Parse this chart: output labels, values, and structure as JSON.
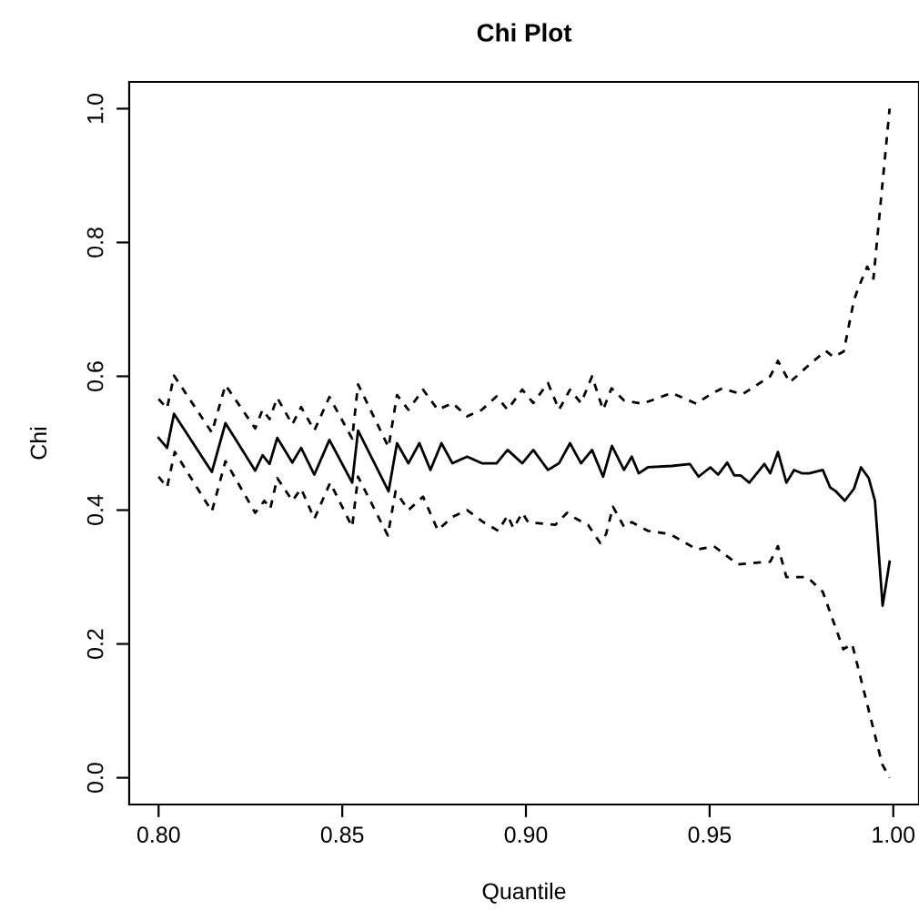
{
  "chart_data": {
    "type": "line",
    "title": "Chi Plot",
    "xlabel": "Quantile",
    "ylabel": "Chi",
    "xlim": [
      0.792,
      1.007
    ],
    "ylim": [
      -0.04,
      1.04
    ],
    "xticks": [
      {
        "value": 0.8,
        "label": "0.80"
      },
      {
        "value": 0.85,
        "label": "0.85"
      },
      {
        "value": 0.9,
        "label": "0.90"
      },
      {
        "value": 0.95,
        "label": "0.95"
      },
      {
        "value": 1.0,
        "label": "1.00"
      }
    ],
    "yticks": [
      {
        "value": 0.0,
        "label": "0.0"
      },
      {
        "value": 0.2,
        "label": "0.2"
      },
      {
        "value": 0.4,
        "label": "0.4"
      },
      {
        "value": 0.6,
        "label": "0.6"
      },
      {
        "value": 0.8,
        "label": "0.8"
      },
      {
        "value": 1.0,
        "label": "1.0"
      }
    ],
    "grid": false,
    "legend": false,
    "marker": "none",
    "series": [
      {
        "color": "#000000",
        "line_style": "solid",
        "x": [
          0.8,
          0.8023,
          0.8042,
          0.8145,
          0.8182,
          0.8263,
          0.8283,
          0.8302,
          0.8323,
          0.8364,
          0.8388,
          0.8424,
          0.8465,
          0.8527,
          0.8543,
          0.8626,
          0.8649,
          0.868,
          0.871,
          0.874,
          0.877,
          0.88,
          0.884,
          0.888,
          0.892,
          0.895,
          0.899,
          0.902,
          0.906,
          0.909,
          0.912,
          0.915,
          0.918,
          0.921,
          0.9234,
          0.9267,
          0.9288,
          0.9307,
          0.9332,
          0.9397,
          0.9446,
          0.947,
          0.9502,
          0.9523,
          0.9548,
          0.9567,
          0.9584,
          0.9608,
          0.9649,
          0.9665,
          0.9686,
          0.9709,
          0.973,
          0.9751,
          0.9771,
          0.9808,
          0.9828,
          0.9844,
          0.9868,
          0.9893,
          0.9912,
          0.9933,
          0.995,
          0.9971,
          0.999
        ],
        "values": [
          0.508,
          0.493,
          0.544,
          0.457,
          0.53,
          0.459,
          0.482,
          0.469,
          0.508,
          0.471,
          0.493,
          0.453,
          0.505,
          0.441,
          0.519,
          0.428,
          0.5,
          0.47,
          0.5,
          0.46,
          0.5,
          0.47,
          0.48,
          0.47,
          0.47,
          0.49,
          0.47,
          0.49,
          0.46,
          0.47,
          0.5,
          0.47,
          0.49,
          0.45,
          0.496,
          0.46,
          0.48,
          0.455,
          0.464,
          0.466,
          0.469,
          0.45,
          0.464,
          0.453,
          0.471,
          0.452,
          0.452,
          0.441,
          0.469,
          0.455,
          0.487,
          0.441,
          0.46,
          0.455,
          0.455,
          0.46,
          0.434,
          0.428,
          0.414,
          0.432,
          0.464,
          0.448,
          0.414,
          0.257,
          0.323
        ]
      },
      {
        "color": "#000000",
        "line_style": "dashed",
        "x": [
          0.8,
          0.8023,
          0.8042,
          0.8145,
          0.8182,
          0.8263,
          0.8283,
          0.8302,
          0.8323,
          0.8364,
          0.8388,
          0.8424,
          0.8465,
          0.8527,
          0.8543,
          0.8626,
          0.8649,
          0.868,
          0.872,
          0.876,
          0.88,
          0.884,
          0.888,
          0.892,
          0.895,
          0.899,
          0.902,
          0.906,
          0.909,
          0.912,
          0.915,
          0.918,
          0.921,
          0.9233,
          0.9267,
          0.9316,
          0.9397,
          0.9464,
          0.9502,
          0.9534,
          0.9589,
          0.9665,
          0.9686,
          0.9718,
          0.9775,
          0.9816,
          0.9837,
          0.9865,
          0.9893,
          0.9905,
          0.9929,
          0.9946,
          0.999
        ],
        "values": [
          0.566,
          0.552,
          0.601,
          0.516,
          0.587,
          0.522,
          0.55,
          0.536,
          0.568,
          0.528,
          0.554,
          0.519,
          0.569,
          0.507,
          0.588,
          0.494,
          0.572,
          0.55,
          0.58,
          0.55,
          0.56,
          0.54,
          0.55,
          0.57,
          0.55,
          0.58,
          0.56,
          0.59,
          0.55,
          0.58,
          0.56,
          0.6,
          0.55,
          0.582,
          0.564,
          0.559,
          0.575,
          0.559,
          0.573,
          0.582,
          0.573,
          0.6,
          0.623,
          0.591,
          0.619,
          0.638,
          0.629,
          0.637,
          0.714,
          0.732,
          0.764,
          0.746,
          1.0
        ]
      },
      {
        "color": "#000000",
        "line_style": "dashed",
        "x": [
          0.8,
          0.8023,
          0.8044,
          0.8145,
          0.8182,
          0.8263,
          0.8288,
          0.8304,
          0.8323,
          0.8364,
          0.8388,
          0.8424,
          0.8467,
          0.8527,
          0.8543,
          0.8624,
          0.8645,
          0.868,
          0.872,
          0.876,
          0.88,
          0.884,
          0.886,
          0.8884,
          0.8925,
          0.895,
          0.8966,
          0.899,
          0.9006,
          0.908,
          0.9112,
          0.9137,
          0.9169,
          0.9202,
          0.9218,
          0.9237,
          0.9267,
          0.9288,
          0.9332,
          0.9393,
          0.9466,
          0.9512,
          0.9577,
          0.9665,
          0.9686,
          0.9709,
          0.9766,
          0.9808,
          0.9864,
          0.9888,
          0.997,
          0.999
        ],
        "values": [
          0.45,
          0.434,
          0.487,
          0.398,
          0.473,
          0.396,
          0.414,
          0.402,
          0.448,
          0.414,
          0.432,
          0.387,
          0.441,
          0.375,
          0.45,
          0.362,
          0.428,
          0.4,
          0.42,
          0.37,
          0.39,
          0.4,
          0.392,
          0.382,
          0.369,
          0.392,
          0.373,
          0.396,
          0.382,
          0.378,
          0.396,
          0.387,
          0.378,
          0.351,
          0.364,
          0.405,
          0.375,
          0.382,
          0.369,
          0.364,
          0.341,
          0.346,
          0.319,
          0.323,
          0.346,
          0.3,
          0.3,
          0.278,
          0.192,
          0.2,
          0.02,
          0.0
        ]
      }
    ]
  }
}
